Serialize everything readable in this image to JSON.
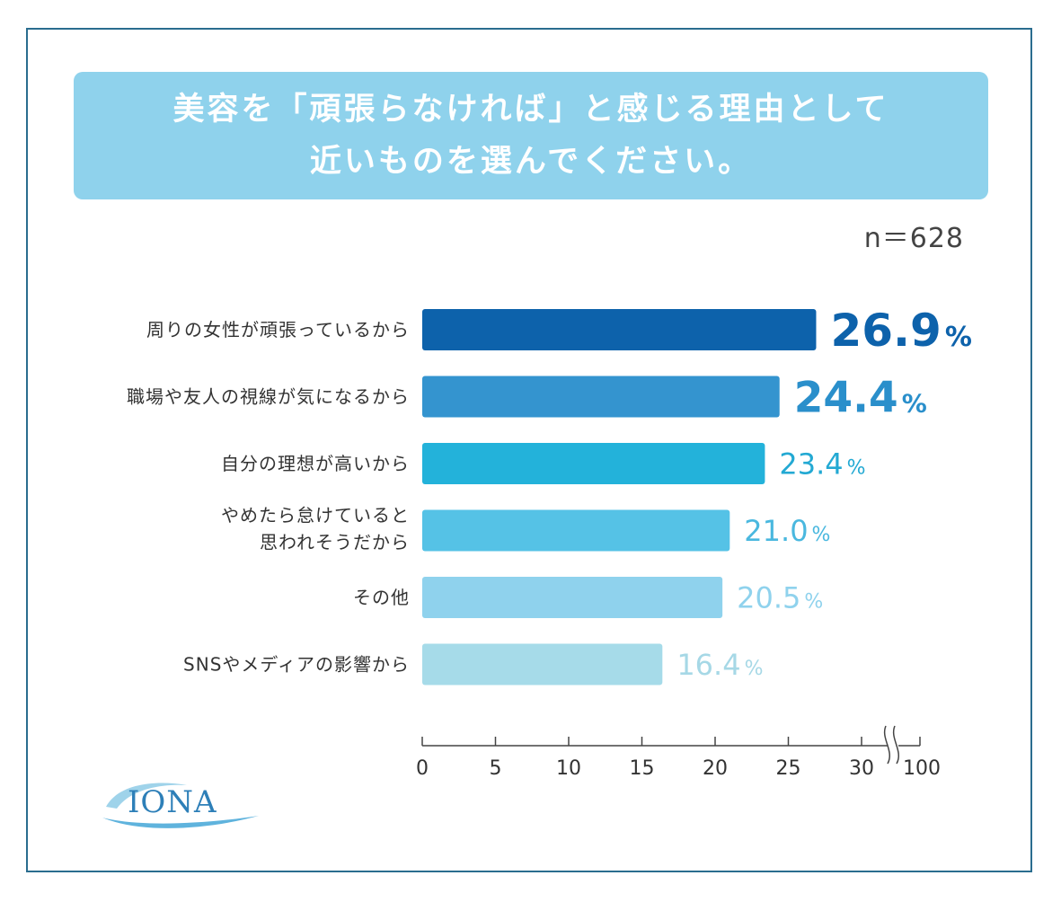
{
  "title": {
    "line1": "美容を「頑張らなければ」と感じる理由として",
    "line2": "近いものを選んでください。"
  },
  "sample_size": "n＝628",
  "logo_text": "IONA",
  "chart_data": {
    "type": "bar",
    "orientation": "horizontal",
    "categories": [
      [
        "周りの女性が頑張っているから"
      ],
      [
        "職場や友人の視線が気になるから"
      ],
      [
        "自分の理想が高いから"
      ],
      [
        "やめたら怠けていると",
        "思われそうだから"
      ],
      [
        "その他"
      ],
      [
        "SNSやメディアの影響から"
      ]
    ],
    "values": [
      26.9,
      24.4,
      23.4,
      21.0,
      20.5,
      16.4
    ],
    "value_labels": [
      "26.9",
      "24.4",
      "23.4",
      "21.0",
      "20.5",
      "16.4"
    ],
    "unit": "%",
    "colors": [
      "#0d62ab",
      "#3494cf",
      "#23b2da",
      "#55c2e6",
      "#8fd2ed",
      "#a6dbe9"
    ],
    "label_colors": [
      "#0d62ab",
      "#2a8fcb",
      "#23a9d3",
      "#4ab8df",
      "#8fd2ed",
      "#a6d8e6"
    ],
    "x_ticks": [
      0,
      5,
      10,
      15,
      20,
      25,
      30
    ],
    "x_tick_labels": [
      "0",
      "5",
      "10",
      "15",
      "20",
      "25",
      "30",
      "100"
    ],
    "axis_break_end": 100,
    "xlim": [
      0,
      30
    ]
  }
}
